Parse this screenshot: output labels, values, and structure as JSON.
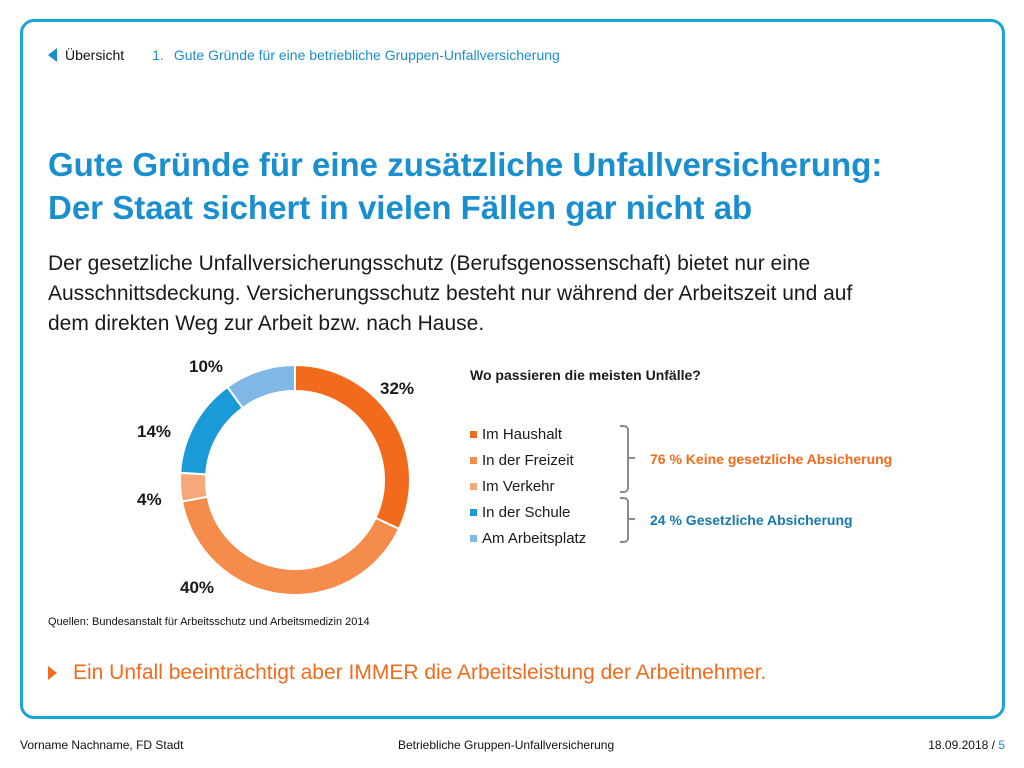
{
  "nav": {
    "back_label": "Übersicht",
    "crumb_number": "1.",
    "crumb_label": "Gute Gründe für eine betriebliche Gruppen-Unfallversicherung"
  },
  "title": {
    "line1": "Gute Gründe für eine zusätzliche Unfallversicherung:",
    "line2": "Der Staat sichert in vielen Fällen gar nicht ab"
  },
  "intro": {
    "line1": "Der gesetzliche Unfallversicherungsschutz (Berufsgenossenschaft) bietet nur eine",
    "line2": "Ausschnittsdeckung. Versicherungsschutz besteht nur während der Arbeitszeit und auf",
    "line3": "dem direkten Weg zur Arbeit bzw. nach Hause."
  },
  "chart_data": {
    "type": "pie",
    "variant": "donut",
    "title": "Wo passieren die meisten Unfälle?",
    "categories": [
      "Im Haushalt",
      "In der Freizeit",
      "Im Verkehr",
      "In der Schule",
      "Am Arbeitsplatz"
    ],
    "values": [
      32,
      40,
      4,
      14,
      10
    ],
    "value_labels": [
      "32%",
      "40%",
      "4%",
      "14%",
      "10%"
    ],
    "colors": [
      "#f26b1d",
      "#f58c4b",
      "#f7a87a",
      "#1a9ad6",
      "#7fb8e6"
    ],
    "legend_position": "right",
    "groups": [
      {
        "label": "76 % Keine gesetzliche Absicherung",
        "members": [
          "Im Haushalt",
          "In der Freizeit",
          "Im Verkehr"
        ],
        "color": "#f26b1d"
      },
      {
        "label": "24 % Gesetzliche Absicherung",
        "members": [
          "In der Schule",
          "Am Arbeitsplatz"
        ],
        "color": "#1679b0"
      }
    ]
  },
  "source": "Quellen: Bundesanstalt für Arbeitsschutz und Arbeitsmedizin 2014",
  "note": "Ein Unfall beeinträchtigt aber IMMER die Arbeitsleistung der Arbeitnehmer.",
  "footer": {
    "left": "Vorname Nachname, FD Stadt",
    "center": "Betriebliche Gruppen-Unfallversicherung",
    "date": "18.09.2018",
    "separator": " / ",
    "page": "5"
  }
}
